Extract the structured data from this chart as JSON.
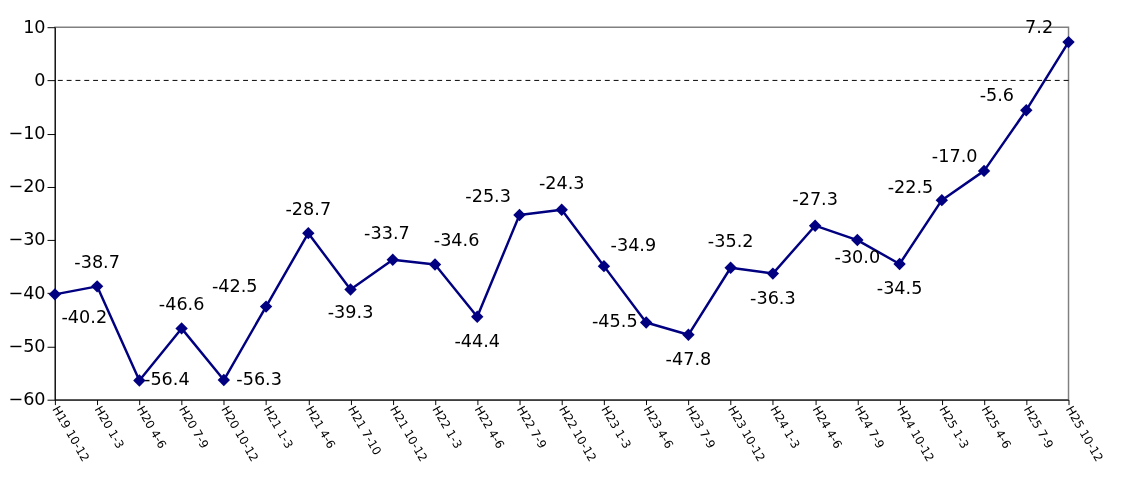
{
  "chart_data": {
    "type": "line",
    "categories": [
      "H19 10-12",
      "H20 1-3",
      "H20 4-6",
      "H20 7-9",
      "H20 10-12",
      "H21 1-3",
      "H21 4-6",
      "H21 7-10",
      "H21 10-12",
      "H22 1-3",
      "H22 4-6",
      "H22 7-9",
      "H22 10-12",
      "H23 1-3",
      "H23 4-6",
      "H23 7-9",
      "H23 10-12",
      "H24 1-3",
      "H24 4-6",
      "H24 7-9",
      "H24 10-12",
      "H25 1-3",
      "H25 4-6",
      "H25 7-9",
      "H25 10-12"
    ],
    "series": [
      {
        "color": "#000080",
        "values": [
          -40.2,
          -38.7,
          -56.4,
          -46.6,
          -56.3,
          -42.5,
          -28.7,
          -39.3,
          -33.7,
          -34.6,
          -44.4,
          -25.3,
          -24.3,
          -34.9,
          -45.5,
          -47.8,
          -35.2,
          -36.3,
          -27.3,
          -30.0,
          -34.5,
          -22.5,
          -17.0,
          -5.6,
          7.2
        ]
      }
    ],
    "value_labels": [
      "-40.2",
      "-38.7",
      "-56.4",
      "-46.6",
      "-56.3",
      "-42.5",
      "-28.7",
      "-39.3",
      "-33.7",
      "-34.6",
      "-44.4",
      "-25.3",
      "-24.3",
      "-34.9",
      "-45.5",
      "-47.8",
      "-35.2",
      "-36.3",
      "-27.3",
      "-30.0",
      "-34.5",
      "-22.5",
      "-17.0",
      "-5.6",
      "7.2"
    ],
    "ylim": [
      -60,
      10
    ],
    "yticks": [
      -60,
      -50,
      -40,
      -30,
      -20,
      -10,
      0,
      10
    ],
    "ref_lines": [
      {
        "axis": "y",
        "value": 0,
        "line_style": "dashed",
        "color": "#000000"
      }
    ],
    "grid": false,
    "marker": "diamond",
    "line_style": "solid"
  }
}
